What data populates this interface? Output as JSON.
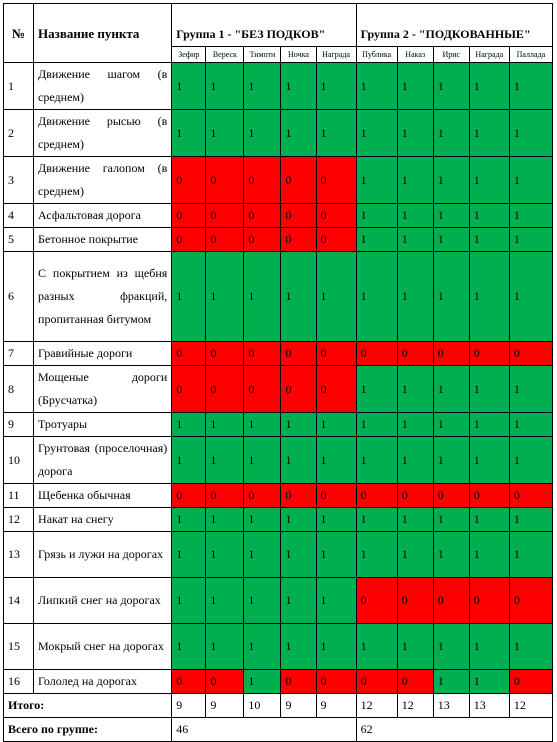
{
  "header": {
    "num_label": "№",
    "name_label": "Название пункта",
    "group1_label": "Группа 1 - \"БЕЗ ПОДКОВ\"",
    "group2_label": "Группа 2 - \"ПОДКОВАННЫЕ\"",
    "horses": [
      "Зефир",
      "Вереск",
      "Тимоти",
      "Ночка",
      "Награда",
      "Публика",
      "Наказ",
      "Ирис",
      "Награда",
      "Паллада"
    ]
  },
  "colors": {
    "one": "#00b050",
    "zero": "#ff0000"
  },
  "rows": [
    {
      "num": "1",
      "name": "Движение шагом (в среднем)",
      "values": [
        1,
        1,
        1,
        1,
        1,
        1,
        1,
        1,
        1,
        1
      ]
    },
    {
      "num": "2",
      "name": "Движение рысью (в среднем)",
      "values": [
        1,
        1,
        1,
        1,
        1,
        1,
        1,
        1,
        1,
        1
      ]
    },
    {
      "num": "3",
      "name": "Движение галопом (в среднем)",
      "values": [
        0,
        0,
        0,
        0,
        0,
        1,
        1,
        1,
        1,
        1
      ]
    },
    {
      "num": "4",
      "name": "Асфальтовая дорога",
      "values": [
        0,
        0,
        0,
        0,
        0,
        1,
        1,
        1,
        1,
        1
      ]
    },
    {
      "num": "5",
      "name": "Бетонное покрытие",
      "values": [
        0,
        0,
        0,
        0,
        0,
        1,
        1,
        1,
        1,
        1
      ]
    },
    {
      "num": "6",
      "name": "С покрытием из щебня разных фракций, пропитанная битумом",
      "values": [
        1,
        1,
        1,
        1,
        1,
        1,
        1,
        1,
        1,
        1
      ]
    },
    {
      "num": "7",
      "name": "Гравийные дороги",
      "values": [
        0,
        0,
        0,
        0,
        0,
        0,
        0,
        0,
        0,
        0
      ]
    },
    {
      "num": "8",
      "name": "Мощеные дороги (Брусчатка)",
      "values": [
        0,
        0,
        0,
        0,
        0,
        1,
        1,
        1,
        1,
        1
      ]
    },
    {
      "num": "9",
      "name": "Тротуары",
      "values": [
        1,
        1,
        1,
        1,
        1,
        1,
        1,
        1,
        1,
        1
      ]
    },
    {
      "num": "10",
      "name": "Грунтовая (проселочная) дорога",
      "values": [
        1,
        1,
        1,
        1,
        1,
        1,
        1,
        1,
        1,
        1
      ]
    },
    {
      "num": "11",
      "name": "Щебенка обычная",
      "values": [
        0,
        0,
        0,
        0,
        0,
        0,
        0,
        0,
        0,
        0
      ]
    },
    {
      "num": "12",
      "name": "Накат на снегу",
      "values": [
        1,
        1,
        1,
        1,
        1,
        1,
        1,
        1,
        1,
        1
      ]
    },
    {
      "num": "13",
      "name": "Грязь и лужи на дорогах",
      "values": [
        1,
        1,
        1,
        1,
        1,
        1,
        1,
        1,
        1,
        1
      ]
    },
    {
      "num": "14",
      "name": "Липкий снег на дорогах",
      "values": [
        1,
        1,
        1,
        1,
        1,
        0,
        0,
        0,
        0,
        0
      ]
    },
    {
      "num": "15",
      "name": "Мокрый снег на дорогах",
      "values": [
        1,
        1,
        1,
        1,
        1,
        1,
        1,
        1,
        1,
        1
      ]
    },
    {
      "num": "16",
      "name": "Гололед на дорогах",
      "values": [
        0,
        0,
        1,
        0,
        0,
        0,
        0,
        1,
        1,
        0
      ]
    }
  ],
  "totals": {
    "label": "Итого:",
    "values": [
      9,
      9,
      10,
      9,
      9,
      12,
      12,
      13,
      13,
      12
    ]
  },
  "group_totals": {
    "label": "Всего по группе:",
    "group1": "46",
    "group2": "62"
  }
}
